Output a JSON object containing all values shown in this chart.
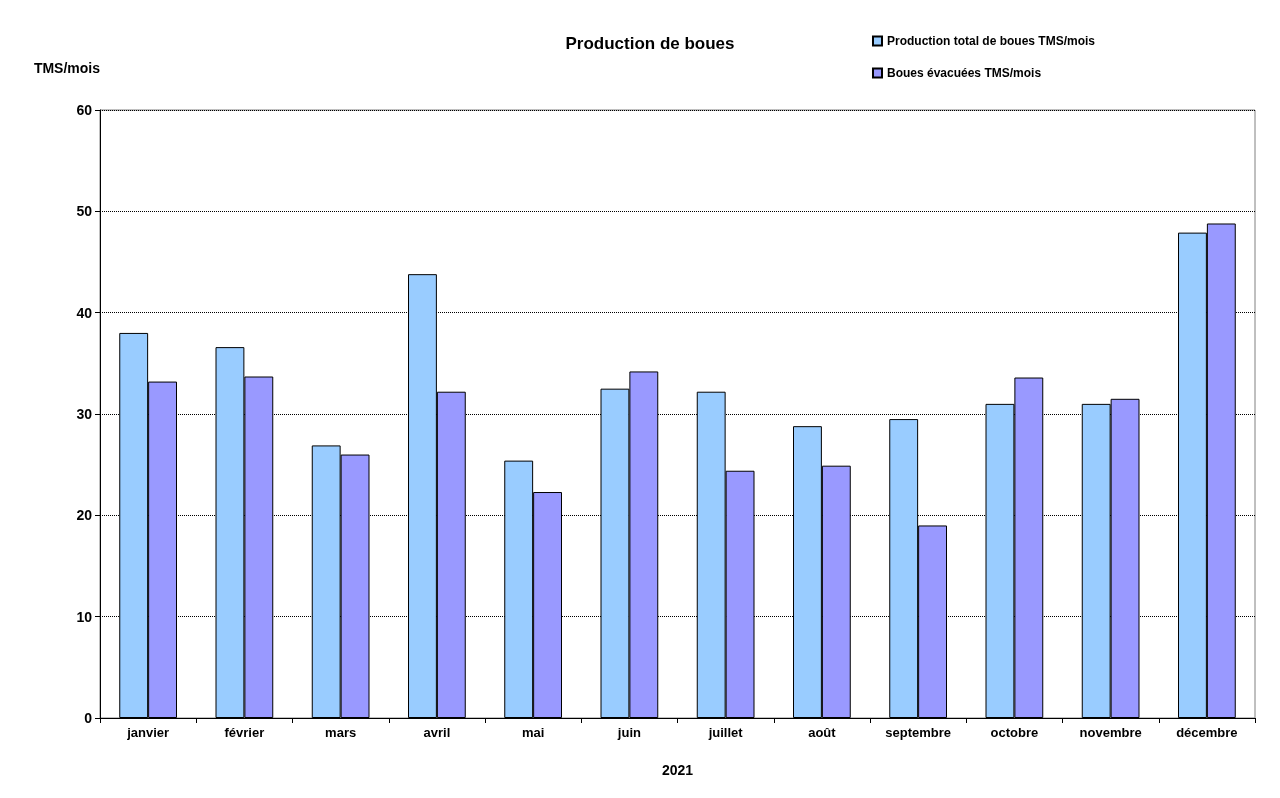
{
  "chart_data": {
    "type": "bar",
    "title": "Production de boues",
    "ylabel": "TMS/mois",
    "xlabel": "2021",
    "categories": [
      "janvier",
      "février",
      "mars",
      "avril",
      "mai",
      "juin",
      "juillet",
      "août",
      "septembre",
      "octobre",
      "novembre",
      "décembre"
    ],
    "series": [
      {
        "name": "Production total de boues TMS/mois",
        "color": "#99ccff",
        "values": [
          38.0,
          36.6,
          26.9,
          43.8,
          25.4,
          32.5,
          32.2,
          28.8,
          29.5,
          31.0,
          31.0,
          47.9
        ]
      },
      {
        "name": "Boues évacuées TMS/mois",
        "color": "#9999ff",
        "values": [
          33.2,
          33.7,
          26.0,
          32.2,
          22.3,
          34.2,
          24.4,
          24.9,
          19.0,
          33.6,
          31.5,
          48.8
        ]
      }
    ],
    "ylim": [
      0,
      60
    ],
    "yticks": [
      0,
      10,
      20,
      30,
      40,
      50,
      60
    ],
    "grid": "y",
    "legend": "top right"
  }
}
